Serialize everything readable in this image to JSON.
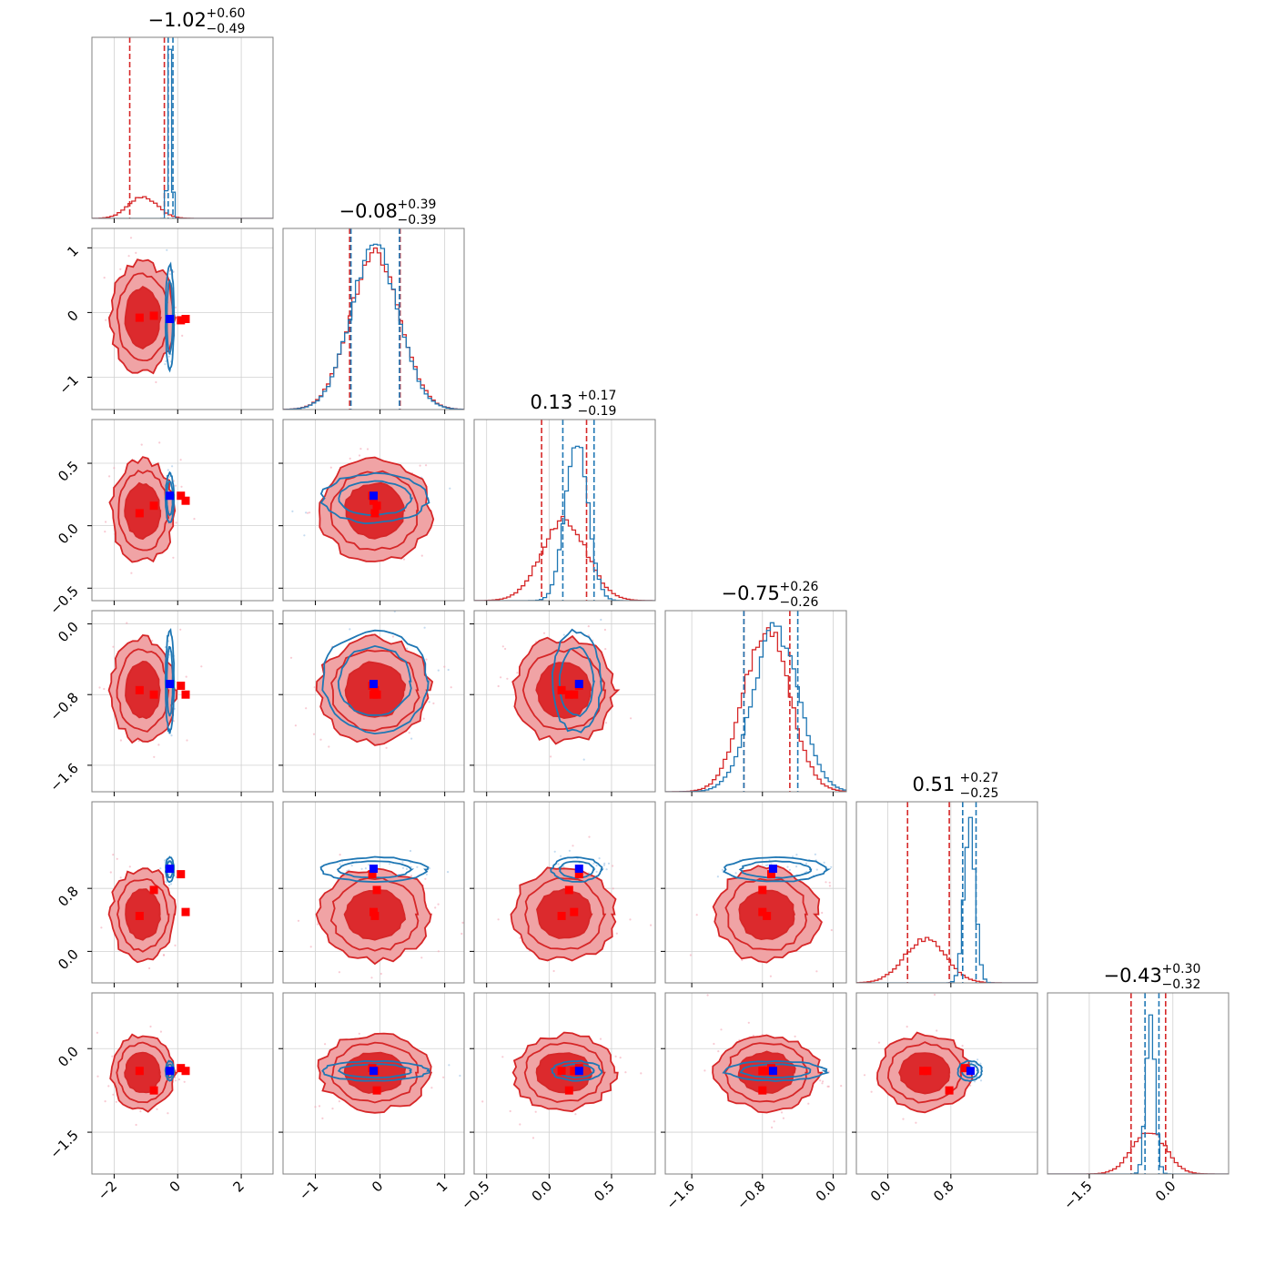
{
  "chart_data": {
    "type": "corner",
    "n_params": 6,
    "grid": true,
    "colors": {
      "red": "#d62728",
      "blue": "#1f77b4",
      "marker_red": "#ff0000",
      "marker_blue": "#0000ff",
      "fill_inner": "#dc2a2d",
      "fill_outer": "#f0a3a5",
      "axes_edge": "#808080",
      "grid": "#d0d0d0"
    },
    "titles": [
      {
        "value": "−1.02",
        "plus": "+0.60",
        "minus": "−0.49"
      },
      {
        "value": "−0.08",
        "plus": "+0.39",
        "minus": "−0.39"
      },
      {
        "value": "0.13",
        "plus": "+0.17",
        "minus": "−0.19"
      },
      {
        "value": "−0.75",
        "plus": "+0.26",
        "minus": "−0.26"
      },
      {
        "value": "0.51",
        "plus": "+0.27",
        "minus": "−0.25"
      },
      {
        "value": "−0.43",
        "plus": "+0.30",
        "minus": "−0.32"
      }
    ],
    "params": [
      {
        "range": [
          -2.7,
          3.0
        ],
        "ticks": [
          -2,
          0,
          2
        ],
        "tick_labels": [
          "−2",
          "0",
          "2"
        ],
        "red": {
          "mean": -1.1,
          "sd": 0.45,
          "q": [
            -1.51,
            -0.42
          ]
        },
        "blue": {
          "mean": -0.25,
          "sd": 0.06,
          "q": [
            -0.3,
            -0.15
          ]
        },
        "truth_blue": -0.25,
        "truth_red": [
          -1.2,
          -0.75,
          0.1,
          0.25
        ]
      },
      {
        "range": [
          -1.5,
          1.3
        ],
        "ticks": [
          -1,
          0,
          1
        ],
        "tick_labels": [
          "−1",
          "0",
          "1"
        ],
        "red": {
          "mean": -0.08,
          "sd": 0.38,
          "q": [
            -0.47,
            0.31
          ]
        },
        "blue": {
          "mean": -0.08,
          "sd": 0.37,
          "q": [
            -0.45,
            0.3
          ]
        },
        "truth_blue": -0.1,
        "truth_red": [
          -0.08,
          -0.05,
          -0.12,
          -0.1
        ]
      },
      {
        "range": [
          -0.6,
          0.85
        ],
        "ticks": [
          -0.5,
          0.0,
          0.5
        ],
        "tick_labels": [
          "−0.5",
          "0.0",
          "0.5"
        ],
        "red": {
          "mean": 0.12,
          "sd": 0.18,
          "q": [
            -0.06,
            0.3
          ]
        },
        "blue": {
          "mean": 0.22,
          "sd": 0.09,
          "q": [
            0.11,
            0.36
          ]
        },
        "truth_blue": 0.24,
        "truth_red": [
          0.1,
          0.16,
          0.24,
          0.2
        ]
      },
      {
        "range": [
          -1.9,
          0.15
        ],
        "ticks": [
          -1.6,
          -0.8,
          0.0
        ],
        "tick_labels": [
          "−1.6",
          "−0.8",
          "0.0"
        ],
        "red": {
          "mean": -0.75,
          "sd": 0.26,
          "q": [
            -1.01,
            -0.49
          ]
        },
        "blue": {
          "mean": -0.65,
          "sd": 0.26,
          "q": [
            -1.01,
            -0.4
          ]
        },
        "truth_blue": -0.68,
        "truth_red": [
          -0.75,
          -0.8,
          -0.7,
          -0.8
        ]
      },
      {
        "range": [
          -0.4,
          1.9
        ],
        "ticks": [
          0.0,
          0.8
        ],
        "tick_labels": [
          "0.0",
          "0.8"
        ],
        "red": {
          "mean": 0.47,
          "sd": 0.26,
          "q": [
            0.25,
            0.78
          ]
        },
        "blue": {
          "mean": 1.04,
          "sd": 0.07,
          "q": [
            0.95,
            1.12
          ]
        },
        "truth_blue": 1.05,
        "truth_red": [
          0.45,
          0.78,
          0.98,
          0.5
        ]
      },
      {
        "range": [
          -2.25,
          1.0
        ],
        "ticks": [
          -1.5,
          0.0
        ],
        "tick_labels": [
          "−1.5",
          "0.0"
        ],
        "red": {
          "mean": -0.43,
          "sd": 0.3,
          "q": [
            -0.75,
            -0.13
          ]
        },
        "blue": {
          "mean": -0.4,
          "sd": 0.08,
          "q": [
            -0.5,
            -0.25
          ]
        },
        "truth_blue": -0.4,
        "truth_red": [
          -0.4,
          -0.75,
          -0.35,
          -0.4
        ]
      }
    ]
  }
}
